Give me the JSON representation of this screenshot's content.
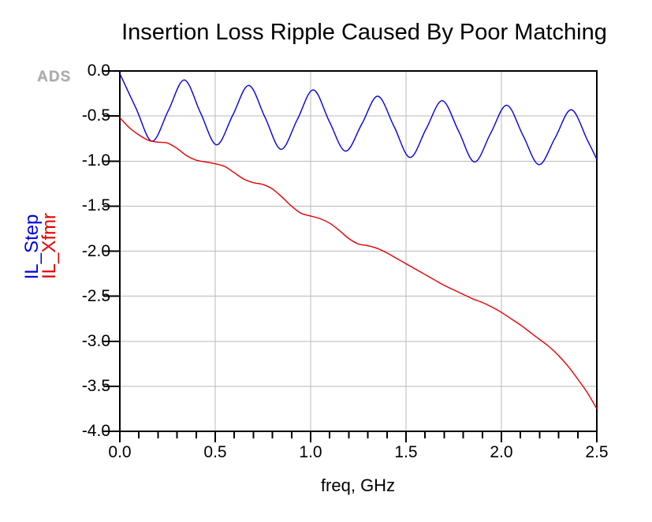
{
  "watermark": "ADS",
  "chart_data": {
    "type": "line",
    "title": "Insertion Loss Ripple Caused By Poor Matching",
    "xlabel": "freq, GHz",
    "xlim": [
      0.0,
      2.5
    ],
    "ylim": [
      -4.0,
      0.0
    ],
    "x_tick_values": [
      0.0,
      0.5,
      1.0,
      1.5,
      2.0,
      2.5
    ],
    "x_tick_labels": [
      "0.0",
      "0.5",
      "1.0",
      "1.5",
      "2.0",
      "2.5"
    ],
    "x_minor_tick_step": 0.1,
    "y_tick_values": [
      0.0,
      -0.5,
      -1.0,
      -1.5,
      -2.0,
      -2.5,
      -3.0,
      -3.5,
      -4.0
    ],
    "y_tick_labels": [
      "0.0",
      "-0.5",
      "-1.0",
      "-1.5",
      "-2.0",
      "-2.5",
      "-3.0",
      "-3.5",
      "-4.0"
    ],
    "grid": true,
    "grid_color": "#b9b9b9",
    "axis_color": "#000000",
    "legend_position": "left-rotated",
    "series": [
      {
        "name": "IL_Step",
        "color": "#0000e6",
        "points": [
          [
            0.0,
            -0.03
          ],
          [
            0.085,
            -0.415
          ],
          [
            0.169,
            -0.78
          ],
          [
            0.254,
            -0.44
          ],
          [
            0.338,
            -0.1
          ],
          [
            0.423,
            -0.465
          ],
          [
            0.507,
            -0.82
          ],
          [
            0.592,
            -0.49
          ],
          [
            0.676,
            -0.16
          ],
          [
            0.761,
            -0.515
          ],
          [
            0.845,
            -0.87
          ],
          [
            0.93,
            -0.54
          ],
          [
            1.014,
            -0.21
          ],
          [
            1.099,
            -0.565
          ],
          [
            1.183,
            -0.89
          ],
          [
            1.268,
            -0.59
          ],
          [
            1.352,
            -0.28
          ],
          [
            1.437,
            -0.615
          ],
          [
            1.521,
            -0.96
          ],
          [
            1.606,
            -0.64
          ],
          [
            1.69,
            -0.33
          ],
          [
            1.775,
            -0.665
          ],
          [
            1.859,
            -1.01
          ],
          [
            1.944,
            -0.69
          ],
          [
            2.028,
            -0.38
          ],
          [
            2.113,
            -0.715
          ],
          [
            2.197,
            -1.04
          ],
          [
            2.282,
            -0.74
          ],
          [
            2.366,
            -0.43
          ],
          [
            2.45,
            -0.765
          ],
          [
            2.5,
            -0.98
          ]
        ]
      },
      {
        "name": "IL_Xfmr",
        "color": "#e60000",
        "points": [
          [
            0.0,
            -0.52
          ],
          [
            0.05,
            -0.63
          ],
          [
            0.1,
            -0.71
          ],
          [
            0.15,
            -0.77
          ],
          [
            0.2,
            -0.79
          ],
          [
            0.25,
            -0.8
          ],
          [
            0.3,
            -0.86
          ],
          [
            0.35,
            -0.94
          ],
          [
            0.4,
            -0.99
          ],
          [
            0.45,
            -1.01
          ],
          [
            0.5,
            -1.03
          ],
          [
            0.55,
            -1.06
          ],
          [
            0.6,
            -1.13
          ],
          [
            0.65,
            -1.2
          ],
          [
            0.7,
            -1.24
          ],
          [
            0.75,
            -1.26
          ],
          [
            0.8,
            -1.31
          ],
          [
            0.85,
            -1.4
          ],
          [
            0.9,
            -1.5
          ],
          [
            0.95,
            -1.58
          ],
          [
            1.0,
            -1.61
          ],
          [
            1.05,
            -1.64
          ],
          [
            1.1,
            -1.69
          ],
          [
            1.15,
            -1.77
          ],
          [
            1.2,
            -1.86
          ],
          [
            1.25,
            -1.92
          ],
          [
            1.3,
            -1.94
          ],
          [
            1.35,
            -1.97
          ],
          [
            1.4,
            -2.02
          ],
          [
            1.45,
            -2.08
          ],
          [
            1.5,
            -2.14
          ],
          [
            1.55,
            -2.2
          ],
          [
            1.6,
            -2.26
          ],
          [
            1.65,
            -2.32
          ],
          [
            1.7,
            -2.38
          ],
          [
            1.75,
            -2.43
          ],
          [
            1.8,
            -2.48
          ],
          [
            1.85,
            -2.53
          ],
          [
            1.9,
            -2.57
          ],
          [
            1.95,
            -2.62
          ],
          [
            2.0,
            -2.68
          ],
          [
            2.05,
            -2.75
          ],
          [
            2.1,
            -2.82
          ],
          [
            2.15,
            -2.9
          ],
          [
            2.2,
            -2.98
          ],
          [
            2.25,
            -3.06
          ],
          [
            2.3,
            -3.16
          ],
          [
            2.35,
            -3.28
          ],
          [
            2.4,
            -3.42
          ],
          [
            2.45,
            -3.57
          ],
          [
            2.5,
            -3.75
          ]
        ]
      }
    ]
  }
}
